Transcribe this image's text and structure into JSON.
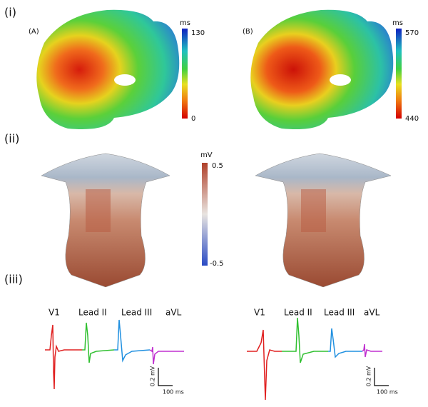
{
  "rows": [
    {
      "label": "(i)",
      "maps": [
        {
          "label": "(A)",
          "unit": "ms",
          "max": "130",
          "min": "0"
        },
        {
          "label": "(B)",
          "unit": "ms",
          "max": "570",
          "min": "440"
        }
      ]
    },
    {
      "label": "(ii)",
      "colorbar": {
        "unit": "mV",
        "max": "0.5",
        "min": "-0.5"
      }
    },
    {
      "label": "(iii)",
      "ecgs": [
        {
          "leads": [
            "V1",
            "Lead II",
            "Lead III",
            "aVL"
          ],
          "scale_y": "0.2 mV",
          "scale_x": "100 ms"
        },
        {
          "leads": [
            "V1",
            "Lead II",
            "Lead III",
            "aVL"
          ],
          "scale_y": "0.2 mV",
          "scale_x": "100 ms"
        }
      ]
    }
  ]
}
